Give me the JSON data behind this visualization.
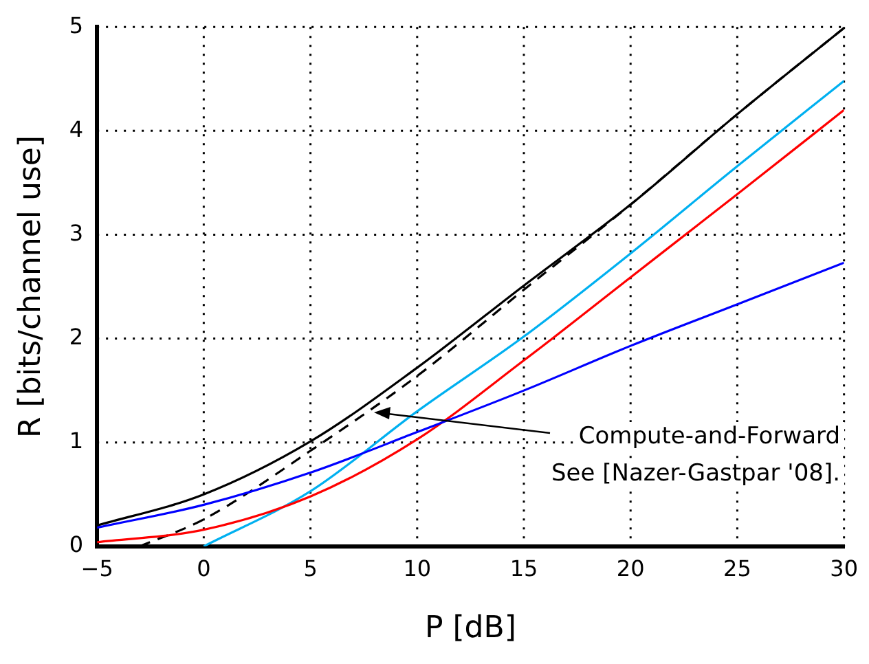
{
  "chart_data": {
    "type": "line",
    "xlabel": "P [dB]",
    "ylabel": "R [bits/channel use]",
    "xlim": [
      -5,
      30
    ],
    "xticks": [
      {
        "value": -5,
        "label": "−5"
      },
      0,
      5,
      10,
      15,
      20,
      25,
      30
    ],
    "ylim": [
      0,
      5
    ],
    "yticks": [
      0,
      1,
      2,
      3,
      4,
      5
    ],
    "grid": true,
    "legend": false,
    "marker": "none",
    "series": [
      {
        "color": "#0000ff",
        "x": [
          -5,
          0,
          5,
          10,
          15,
          20,
          25,
          30
        ],
        "values": [
          0.18,
          0.4,
          0.71,
          1.1,
          1.5,
          1.93,
          2.33,
          2.73
        ]
      },
      {
        "color": "#ff0000",
        "x": [
          -5,
          0,
          5,
          10,
          15,
          20,
          25,
          30
        ],
        "values": [
          0.04,
          0.16,
          0.48,
          1.03,
          1.79,
          2.59,
          3.39,
          4.2
        ]
      },
      {
        "color": "#00b0f0",
        "x": [
          0,
          5,
          10,
          15,
          20,
          25,
          30
        ],
        "values": [
          0,
          0.53,
          1.3,
          2.02,
          2.82,
          3.66,
          4.48
        ]
      },
      {
        "color": "#000000",
        "line_style": "dashed",
        "x": [
          -3,
          0,
          5,
          10,
          15,
          20,
          25,
          30
        ],
        "values": [
          0,
          0.26,
          0.92,
          1.64,
          2.47,
          3.29,
          4.16,
          4.99
        ]
      },
      {
        "color": "#000000",
        "x": [
          -5,
          0,
          5,
          10,
          15,
          20,
          25,
          30
        ],
        "values": [
          0.2,
          0.5,
          1.01,
          1.72,
          2.51,
          3.29,
          4.16,
          4.99
        ]
      }
    ],
    "annotations": [
      "Compute-and-Forward\nSee [Nazer-Gastpar '08]."
    ]
  }
}
